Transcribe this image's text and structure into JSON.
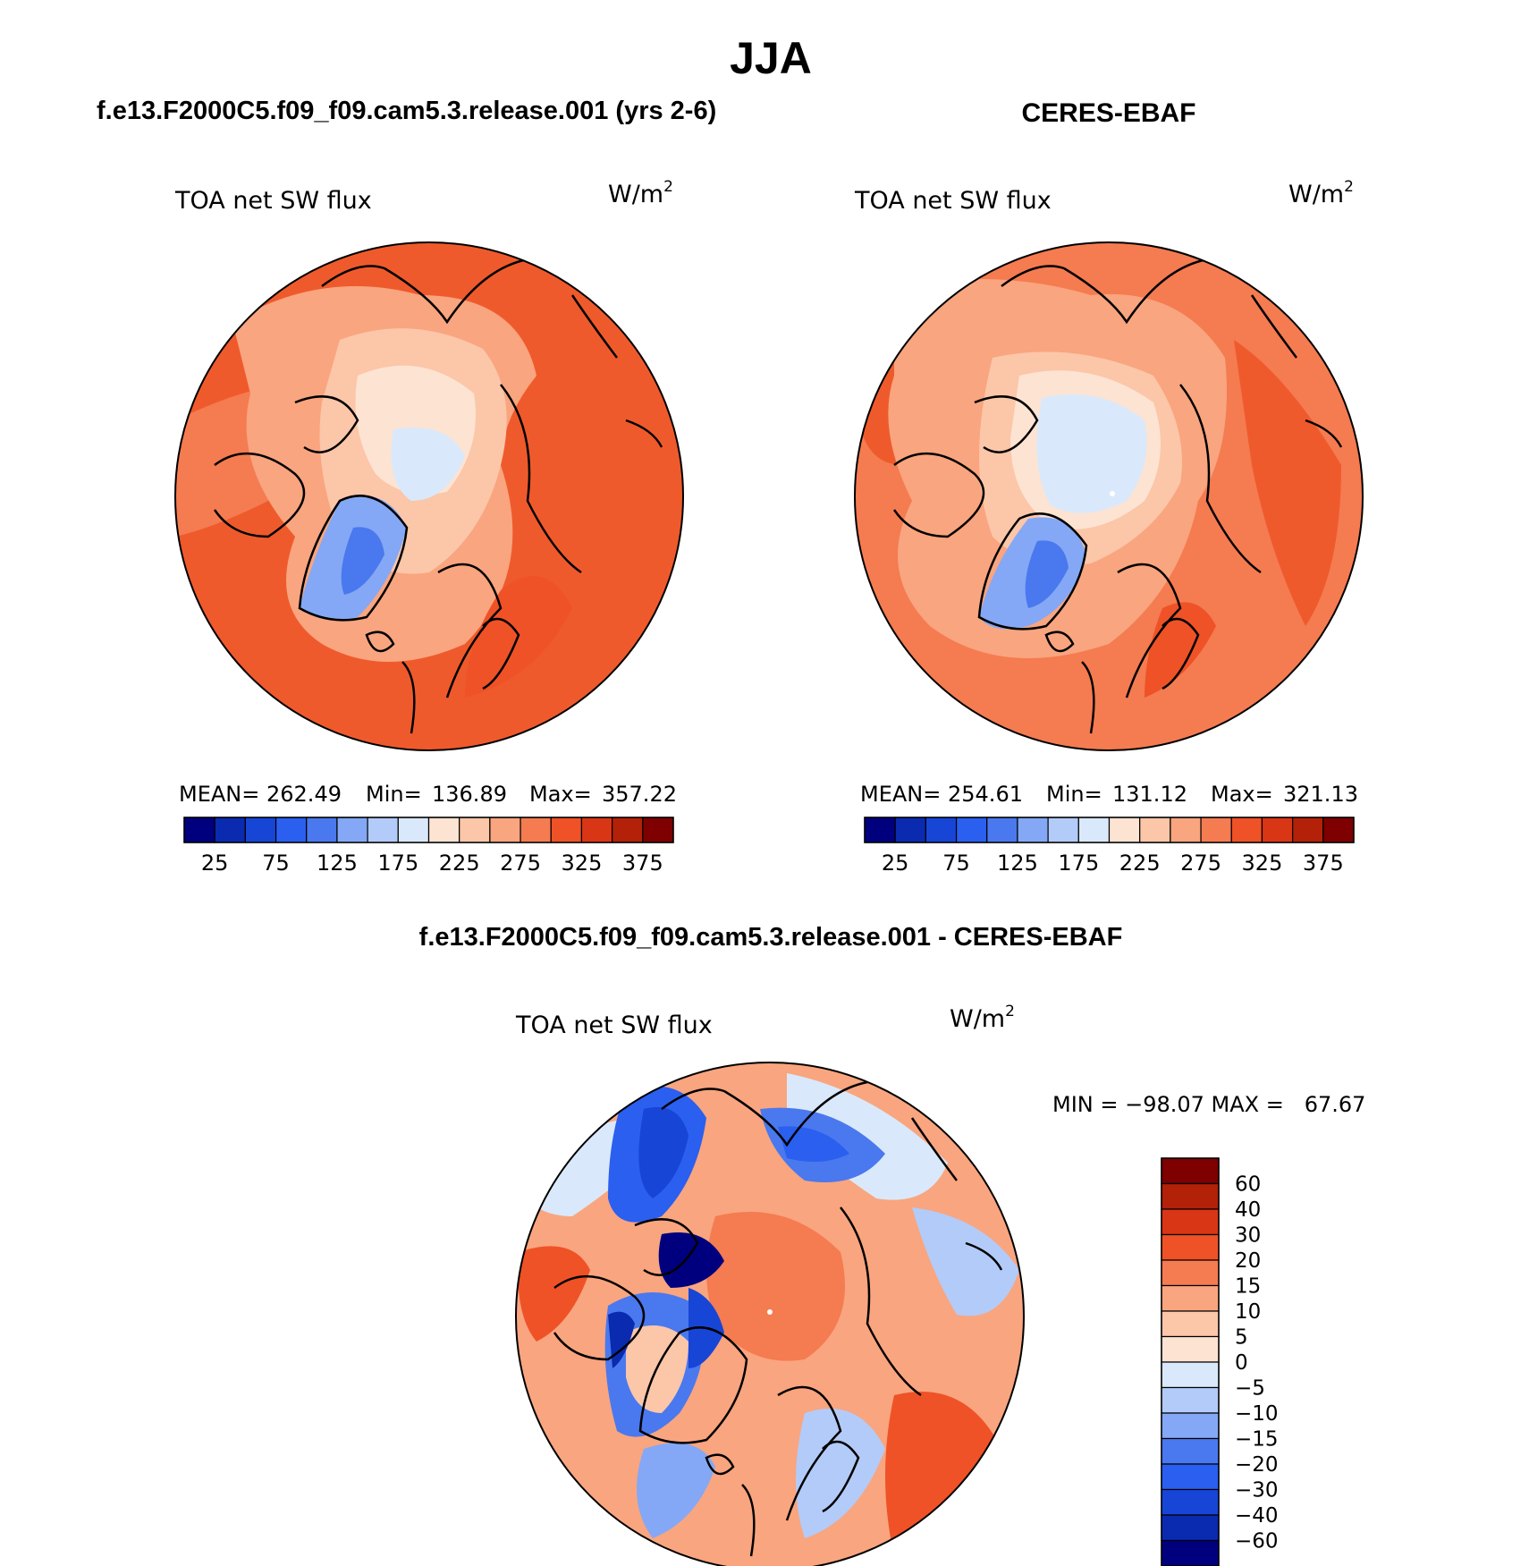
{
  "figure": {
    "title": "JJA",
    "diff_title": "f.e13.F2000C5.f09_f09.cam5.3.release.001 - CERES-EBAF"
  },
  "chart_data": [
    {
      "type": "heatmap",
      "projection": "north-polar-stereographic",
      "case_title": "f.e13.F2000C5.f09_f09.cam5.3.release.001 (yrs 2-6)",
      "variable": "TOA net SW flux",
      "units_base": "W/m",
      "units_exp": "2",
      "stats": {
        "mean_label": "MEAN=",
        "mean": "262.49",
        "min_label": "Min=",
        "min": "136.89",
        "max_label": "Max=",
        "max": "357.22"
      },
      "levels": [
        25,
        50,
        75,
        100,
        125,
        150,
        175,
        200,
        225,
        250,
        275,
        300,
        325,
        350,
        375
      ],
      "tick_labels": [
        "25",
        "75",
        "125",
        "175",
        "225",
        "275",
        "325",
        "375"
      ],
      "colors": [
        "#00007f",
        "#0a2ab0",
        "#1745d6",
        "#2a5ff0",
        "#4a78ee",
        "#84a8f5",
        "#b3cbf8",
        "#d9e9fb",
        "#fde3d2",
        "#fcc6a9",
        "#f9a57f",
        "#f57b51",
        "#ef5226",
        "#d93615",
        "#b22108",
        "#7e0000"
      ]
    },
    {
      "type": "heatmap",
      "projection": "north-polar-stereographic",
      "case_title": "CERES-EBAF",
      "variable": "TOA net SW flux",
      "units_base": "W/m",
      "units_exp": "2",
      "stats": {
        "mean_label": "MEAN=",
        "mean": "254.61",
        "min_label": "Min=",
        "min": "131.12",
        "max_label": "Max=",
        "max": "321.13"
      },
      "levels": [
        25,
        50,
        75,
        100,
        125,
        150,
        175,
        200,
        225,
        250,
        275,
        300,
        325,
        350,
        375
      ],
      "tick_labels": [
        "25",
        "75",
        "125",
        "175",
        "225",
        "275",
        "325",
        "375"
      ],
      "colors": [
        "#00007f",
        "#0a2ab0",
        "#1745d6",
        "#2a5ff0",
        "#4a78ee",
        "#84a8f5",
        "#b3cbf8",
        "#d9e9fb",
        "#fde3d2",
        "#fcc6a9",
        "#f9a57f",
        "#f57b51",
        "#ef5226",
        "#d93615",
        "#b22108",
        "#7e0000"
      ]
    },
    {
      "type": "heatmap",
      "projection": "north-polar-stereographic",
      "variable": "TOA net SW flux",
      "units_base": "W/m",
      "units_exp": "2",
      "minmax_text": "MIN = −98.07 MAX =   67.67",
      "min": -98.07,
      "max": 67.67,
      "levels": [
        -60,
        -40,
        -30,
        -20,
        -15,
        -10,
        -5,
        0,
        5,
        10,
        15,
        20,
        30,
        40,
        60
      ],
      "tick_labels": [
        "60",
        "40",
        "30",
        "20",
        "15",
        "10",
        "5",
        "0",
        "−5",
        "−10",
        "−15",
        "−20",
        "−30",
        "−40",
        "−60"
      ],
      "colors": [
        "#7e0000",
        "#b22108",
        "#d93615",
        "#ef5226",
        "#f57b51",
        "#f9a57f",
        "#fcc6a9",
        "#fde3d2",
        "#d9e9fb",
        "#b3cbf8",
        "#84a8f5",
        "#4a78ee",
        "#2a5ff0",
        "#1745d6",
        "#0a2ab0",
        "#00007f"
      ]
    }
  ]
}
